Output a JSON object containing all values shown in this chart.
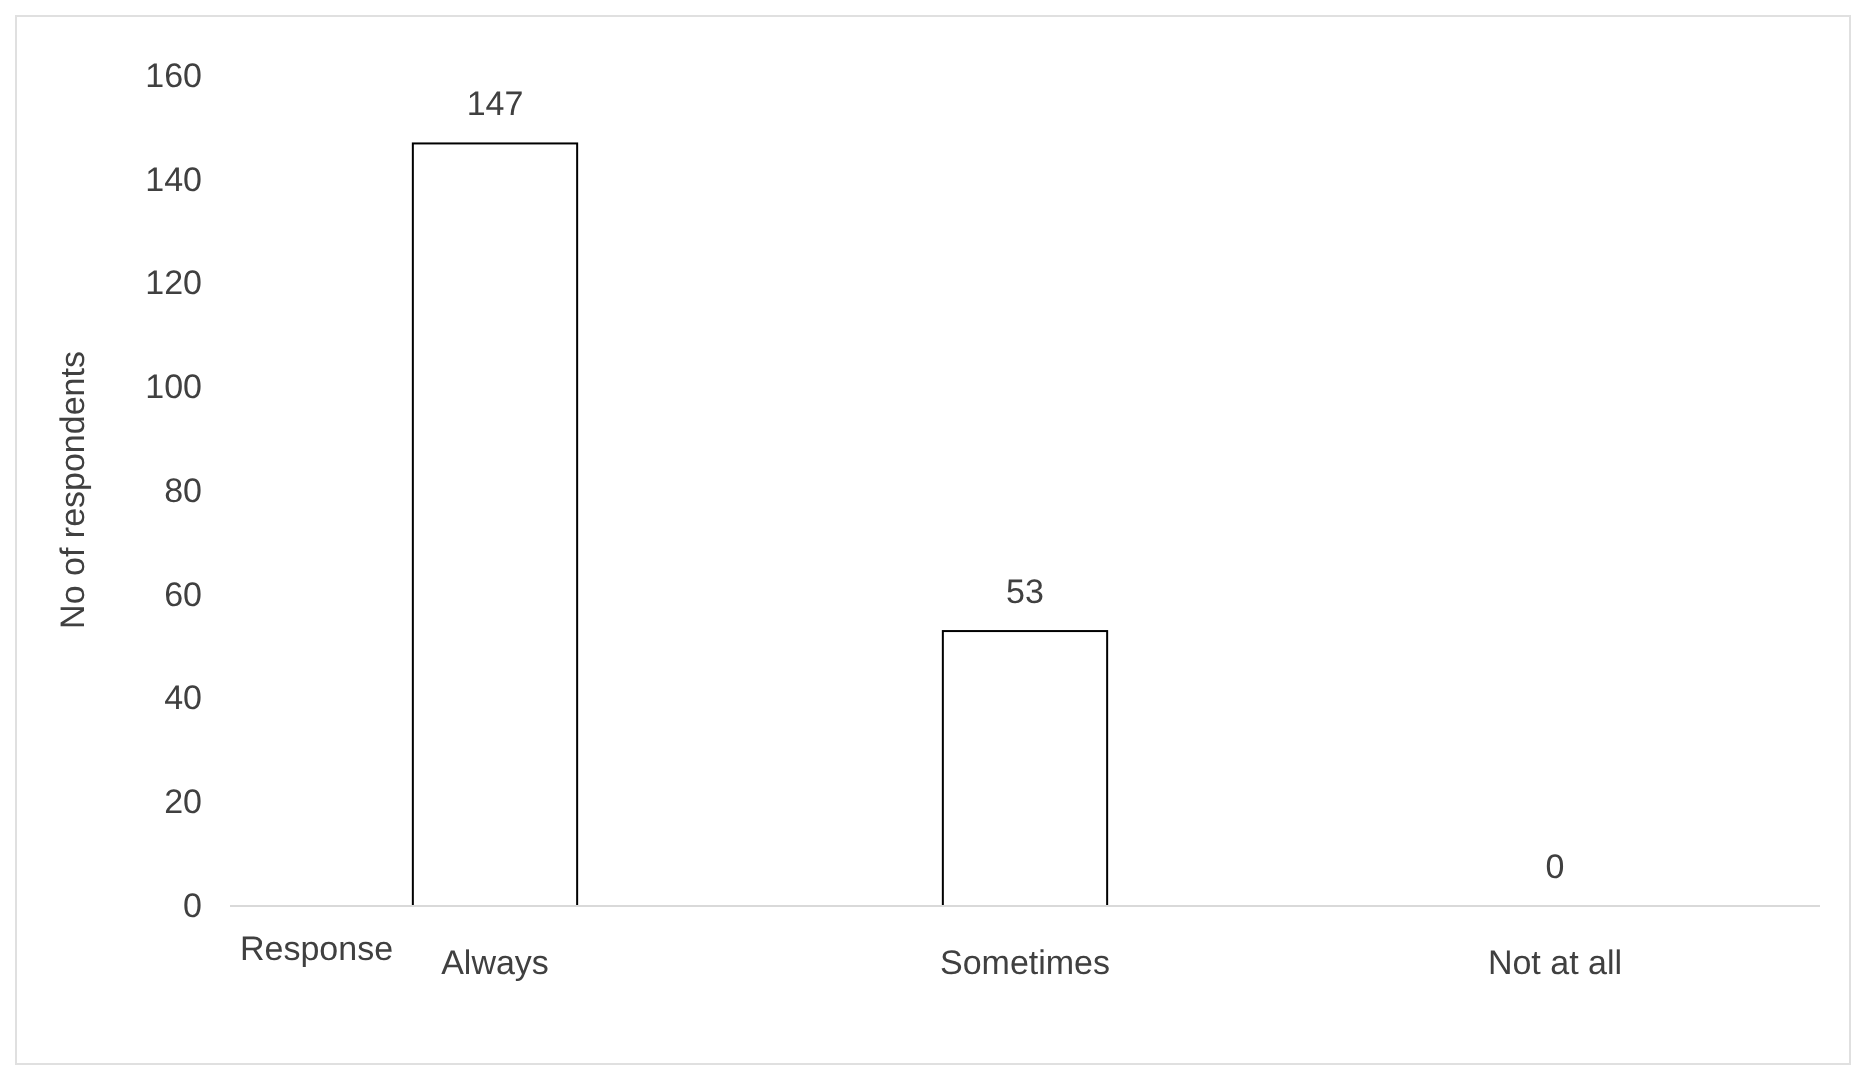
{
  "chart_data": {
    "type": "bar",
    "xlabel": "Response",
    "ylabel": "No of respondents",
    "categories": [
      "Always",
      "Sometimes",
      "Not at all"
    ],
    "values": [
      147,
      53,
      0
    ],
    "color": "#ffffff",
    "ylim": [
      0,
      160
    ],
    "yticks": [
      0,
      20,
      40,
      60,
      80,
      100,
      120,
      140,
      160
    ],
    "grid": false,
    "data_labels": true
  }
}
